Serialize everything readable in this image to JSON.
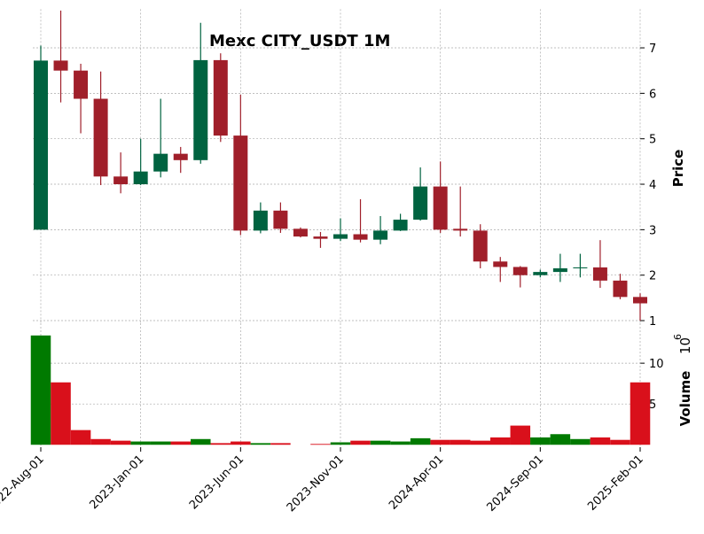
{
  "chart_data": {
    "type": "candlestick",
    "title": "Mexc CITY_USDT 1M",
    "categories": [
      "2022-Aug-01",
      null,
      null,
      null,
      null,
      "2023-Jan-01",
      null,
      null,
      null,
      null,
      "2023-Jun-01",
      null,
      null,
      null,
      null,
      "2023-Nov-01",
      null,
      null,
      null,
      null,
      "2024-Apr-01",
      null,
      null,
      null,
      null,
      "2024-Sep-01",
      null,
      null,
      null,
      null,
      "2025-Feb-01"
    ],
    "open": [
      3.0,
      6.72,
      6.5,
      5.88,
      4.17,
      4.0,
      4.28,
      4.67,
      4.53,
      6.73,
      5.07,
      2.98,
      3.42,
      3.02,
      2.85,
      2.8,
      2.9,
      2.78,
      2.98,
      3.22,
      3.95,
      3.02,
      2.98,
      2.3,
      2.18,
      2.0,
      2.07,
      2.15,
      2.17,
      1.88,
      1.52
    ],
    "high": [
      7.05,
      7.82,
      6.65,
      6.48,
      4.7,
      5.0,
      5.88,
      4.82,
      7.55,
      6.88,
      5.97,
      3.6,
      3.6,
      3.05,
      2.95,
      3.25,
      3.67,
      3.3,
      3.35,
      4.37,
      4.5,
      3.95,
      3.12,
      2.4,
      2.2,
      2.12,
      2.47,
      2.47,
      2.77,
      2.03,
      1.6
    ],
    "low": [
      3.0,
      5.8,
      5.12,
      3.98,
      3.8,
      3.98,
      4.15,
      4.25,
      4.45,
      4.93,
      2.88,
      2.92,
      2.93,
      2.83,
      2.6,
      2.75,
      2.72,
      2.68,
      2.97,
      3.2,
      2.93,
      2.85,
      2.15,
      1.85,
      1.73,
      1.95,
      1.85,
      1.95,
      1.72,
      1.47,
      1.0
    ],
    "close": [
      6.72,
      6.5,
      5.88,
      4.17,
      4.0,
      4.28,
      4.67,
      4.53,
      6.73,
      5.07,
      2.98,
      3.42,
      3.02,
      2.85,
      2.8,
      2.9,
      2.78,
      2.98,
      3.22,
      3.95,
      3.0,
      2.98,
      2.3,
      2.18,
      2.0,
      2.07,
      2.15,
      2.17,
      1.88,
      1.52,
      1.38
    ],
    "volume": [
      13.4,
      7.65,
      1.8,
      0.7,
      0.5,
      0.4,
      0.4,
      0.4,
      0.7,
      0.2,
      0.4,
      0.2,
      0.2,
      0,
      0.1,
      0.3,
      0.5,
      0.5,
      0.4,
      0.8,
      0.6,
      0.6,
      0.5,
      0.9,
      2.35,
      0.9,
      1.3,
      0.7,
      0.9,
      0.6,
      7.65
    ],
    "up_color": "#006340",
    "down_color": "#a01f2a",
    "volume_up_color": "#007a00",
    "volume_down_color": "#d9101b",
    "ylim": [
      0.95,
      7.85
    ],
    "yticks": [
      1,
      2,
      3,
      4,
      5,
      6,
      7
    ],
    "ylabel": "Price",
    "volume_ylim": [
      -0.3,
      14.9
    ],
    "volume_yticks": [
      5,
      10
    ],
    "volume_ylabel": "Volume",
    "volume_offset": {
      "base": "10",
      "exponent": "6"
    },
    "grid": true
  }
}
